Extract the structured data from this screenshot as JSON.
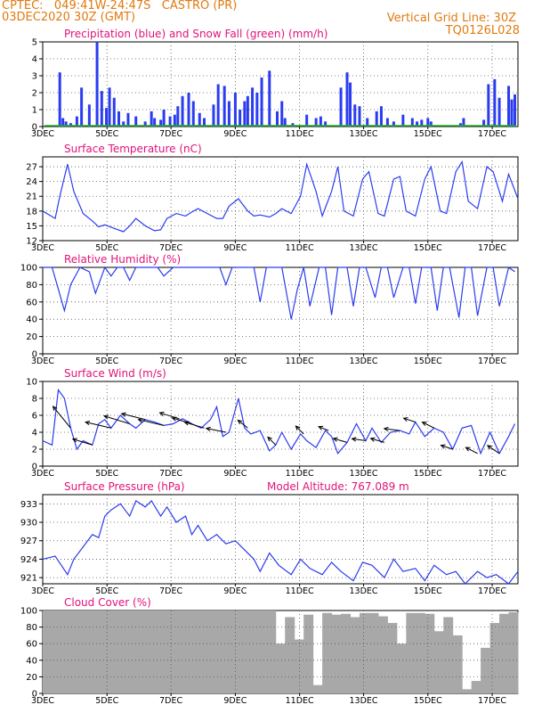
{
  "header": {
    "line1_left": "CPTEC:   049:41W-24:47S   CASTRO (PR)",
    "line2_left": "03DEC2020 30Z (GMT)",
    "line2_right": "Vertical Grid Line: 30Z",
    "line3_right": "TQ0126L028"
  },
  "colors": {
    "header": "#e07a10",
    "title": "#e0137a",
    "series": "#2b3cf0",
    "snow": "#1bb31b",
    "cloud": "#a8a8a8",
    "wind_arrow": "#000000"
  },
  "x_labels": [
    "3DEC",
    "5DEC",
    "7DEC",
    "9DEC",
    "11DEC",
    "13DEC",
    "15DEC",
    "17DEC"
  ],
  "chart_data": [
    {
      "type": "bar",
      "title": "Precipitation (blue) and Snow Fall (green) (mm/h)",
      "x_range": [
        0,
        15.3
      ],
      "ylim": [
        0,
        5
      ],
      "yticks": [
        "0",
        "1",
        "2",
        "3",
        "4",
        "5"
      ],
      "series": [
        {
          "name": "Precipitation",
          "x": [
            0.55,
            0.65,
            0.75,
            0.9,
            1.1,
            1.25,
            1.5,
            1.75,
            1.9,
            2.05,
            2.15,
            2.3,
            2.45,
            2.6,
            2.75,
            3.0,
            3.3,
            3.5,
            3.6,
            3.8,
            3.9,
            4.1,
            4.25,
            4.35,
            4.5,
            4.7,
            4.85,
            5.05,
            5.2,
            5.5,
            5.65,
            5.85,
            6.0,
            6.2,
            6.35,
            6.5,
            6.6,
            6.75,
            6.9,
            7.05,
            7.3,
            7.55,
            7.7,
            7.8,
            8.05,
            8.5,
            8.8,
            8.95,
            9.1,
            9.6,
            9.8,
            9.9,
            10.05,
            10.2,
            10.45,
            10.75,
            10.9,
            11.1,
            11.3,
            11.6,
            11.9,
            12.05,
            12.2,
            12.4,
            12.5,
            13.45,
            13.55,
            14.2,
            14.35,
            14.55,
            14.7,
            15.0,
            15.1,
            15.2
          ],
          "values": [
            3.2,
            0.5,
            0.3,
            0.2,
            0.6,
            2.3,
            1.3,
            5.0,
            2.1,
            1.1,
            2.3,
            1.7,
            0.9,
            0.3,
            0.8,
            0.6,
            0.3,
            0.9,
            0.5,
            0.4,
            1.0,
            0.6,
            0.7,
            1.2,
            1.8,
            2.0,
            1.5,
            0.8,
            0.5,
            1.3,
            2.5,
            2.4,
            1.5,
            2.0,
            1.0,
            1.5,
            1.8,
            2.3,
            2.0,
            2.9,
            3.3,
            0.9,
            1.5,
            0.5,
            0.2,
            0.7,
            0.5,
            0.6,
            0.3,
            2.3,
            3.2,
            2.6,
            1.3,
            1.2,
            0.5,
            0.9,
            1.2,
            0.5,
            0.3,
            0.7,
            0.5,
            0.3,
            0.4,
            0.5,
            0.3,
            0.2,
            0.5,
            0.4,
            2.5,
            2.8,
            1.7,
            2.4,
            1.6,
            1.9
          ]
        },
        {
          "name": "Snow Fall",
          "x": [],
          "values": []
        }
      ]
    },
    {
      "type": "line",
      "title": "Surface Temperature (nC)",
      "x_range": [
        0,
        15.3
      ],
      "ylim": [
        12,
        29
      ],
      "yticks": [
        "12",
        "15",
        "18",
        "21",
        "24",
        "27"
      ],
      "series": [
        {
          "name": "Temperature",
          "x": [
            0,
            0.4,
            0.55,
            0.8,
            1.0,
            1.3,
            1.6,
            1.8,
            2.0,
            2.3,
            2.6,
            2.8,
            3.0,
            3.3,
            3.6,
            3.8,
            4.0,
            4.3,
            4.6,
            4.8,
            5.0,
            5.3,
            5.6,
            5.8,
            6.0,
            6.3,
            6.6,
            6.8,
            7.0,
            7.3,
            7.5,
            7.7,
            8.0,
            8.3,
            8.5,
            8.8,
            9.0,
            9.3,
            9.5,
            9.7,
            10.0,
            10.3,
            10.5,
            10.8,
            11.0,
            11.3,
            11.5,
            11.7,
            12.0,
            12.3,
            12.5,
            12.8,
            13.0,
            13.3,
            13.5,
            13.7,
            14.0,
            14.3,
            14.5,
            14.8,
            15.0,
            15.3
          ],
          "values": [
            18,
            16.5,
            21,
            27.5,
            22,
            17.5,
            16,
            14.8,
            15.2,
            14.5,
            13.8,
            15,
            16.5,
            15,
            14,
            14.2,
            16.5,
            17.5,
            17,
            17.8,
            18.5,
            17.5,
            16.5,
            16.5,
            19,
            20.5,
            18,
            17,
            17.2,
            16.8,
            17.5,
            18.5,
            17.5,
            21,
            27.5,
            22,
            17,
            22,
            27,
            18,
            17,
            24.5,
            26,
            17.5,
            17,
            24.5,
            25,
            18,
            17,
            24.5,
            27,
            18,
            17.5,
            26,
            28,
            20,
            18.5,
            27,
            26,
            20,
            25.5,
            20.5
          ]
        }
      ]
    },
    {
      "type": "line",
      "title": "Relative Humidity (%)",
      "x_range": [
        0,
        15.3
      ],
      "ylim": [
        0,
        100
      ],
      "yticks": [
        "0",
        "20",
        "40",
        "60",
        "80",
        "100"
      ],
      "series": [
        {
          "name": "Relative Humidity",
          "x": [
            0,
            0.3,
            0.5,
            0.7,
            0.9,
            1.2,
            1.5,
            1.7,
            2.0,
            2.2,
            2.4,
            2.6,
            2.8,
            3.0,
            3.2,
            3.5,
            3.7,
            3.9,
            4.2,
            4.5,
            4.7,
            4.9,
            5.1,
            5.4,
            5.7,
            5.9,
            6.1,
            6.5,
            6.8,
            7.0,
            7.2,
            7.4,
            7.7,
            8.0,
            8.2,
            8.4,
            8.6,
            8.9,
            9.1,
            9.3,
            9.5,
            9.8,
            10.0,
            10.2,
            10.4,
            10.7,
            10.9,
            11.1,
            11.3,
            11.6,
            11.8,
            12.0,
            12.2,
            12.5,
            12.7,
            12.9,
            13.1,
            13.4,
            13.6,
            13.8,
            14.0,
            14.3,
            14.5,
            14.7,
            15.0,
            15.2
          ],
          "values": [
            100,
            100,
            75,
            50,
            80,
            100,
            95,
            70,
            100,
            90,
            100,
            100,
            85,
            100,
            100,
            100,
            100,
            90,
            100,
            100,
            100,
            100,
            100,
            100,
            100,
            80,
            100,
            100,
            100,
            60,
            100,
            100,
            100,
            40,
            75,
            100,
            55,
            100,
            100,
            45,
            100,
            100,
            55,
            100,
            100,
            65,
            100,
            100,
            65,
            100,
            100,
            58,
            100,
            100,
            50,
            100,
            100,
            42,
            100,
            100,
            44,
            100,
            100,
            55,
            100,
            95
          ]
        }
      ]
    },
    {
      "type": "line",
      "title": "Surface Wind (m/s)",
      "x_range": [
        0,
        15.3
      ],
      "ylim": [
        0,
        10
      ],
      "yticks": [
        "0",
        "2",
        "4",
        "6",
        "8",
        "10"
      ],
      "series": [
        {
          "name": "Wind speed",
          "x": [
            0,
            0.3,
            0.5,
            0.7,
            0.9,
            1.1,
            1.3,
            1.6,
            1.8,
            2.0,
            2.2,
            2.5,
            2.8,
            3.0,
            3.3,
            3.6,
            3.9,
            4.2,
            4.5,
            4.8,
            5.1,
            5.4,
            5.6,
            5.8,
            6.0,
            6.3,
            6.5,
            6.7,
            7.0,
            7.3,
            7.5,
            7.7,
            8.0,
            8.3,
            8.5,
            8.8,
            9.1,
            9.3,
            9.5,
            9.8,
            10.1,
            10.4,
            10.6,
            10.9,
            11.2,
            11.5,
            11.8,
            12.0,
            12.3,
            12.6,
            12.9,
            13.2,
            13.5,
            13.8,
            14.1,
            14.4,
            14.7,
            15.0,
            15.2
          ],
          "values": [
            3,
            2.5,
            9,
            8,
            4.5,
            2,
            3,
            2.5,
            5,
            5.5,
            4.5,
            6,
            5,
            4.5,
            5.5,
            5.2,
            4.8,
            5,
            5.6,
            5,
            4.5,
            5.5,
            7,
            3.5,
            4,
            8,
            4.5,
            3.8,
            4.2,
            1.8,
            2.5,
            4,
            2,
            3.8,
            3,
            2.2,
            4.2,
            3.5,
            1.5,
            2.8,
            5,
            3,
            4.5,
            2.8,
            4,
            4.2,
            3.8,
            5.2,
            3.5,
            4.5,
            4,
            2,
            4.5,
            4.8,
            1.5,
            4,
            1.5,
            3.5,
            5
          ]
        },
        {
          "name": "Wind direction",
          "arrows": [
            {
              "x": 0.9,
              "u": -0.9,
              "v": 1.1
            },
            {
              "x": 1.6,
              "u": -1.0,
              "v": 0.3
            },
            {
              "x": 2.2,
              "u": -1.3,
              "v": 0.3
            },
            {
              "x": 2.8,
              "u": -1.3,
              "v": 0.4
            },
            {
              "x": 3.3,
              "u": -1.2,
              "v": 0.3
            },
            {
              "x": 3.9,
              "u": -1.3,
              "v": 0.3
            },
            {
              "x": 4.4,
              "u": -1.0,
              "v": 0.3
            },
            {
              "x": 4.8,
              "u": -1.0,
              "v": 0.3
            },
            {
              "x": 5.2,
              "u": -1.0,
              "v": 0.3
            },
            {
              "x": 5.9,
              "u": -1.0,
              "v": 0.2
            },
            {
              "x": 6.6,
              "u": -0.5,
              "v": 0.4
            },
            {
              "x": 7.5,
              "u": -0.4,
              "v": 0.4
            },
            {
              "x": 8.4,
              "u": -0.4,
              "v": 0.4
            },
            {
              "x": 9.2,
              "u": -0.5,
              "v": 0.2
            },
            {
              "x": 9.8,
              "u": -0.7,
              "v": 0.2
            },
            {
              "x": 10.4,
              "u": -0.7,
              "v": 0.1
            },
            {
              "x": 11.0,
              "u": -0.7,
              "v": 0.2
            },
            {
              "x": 11.5,
              "u": -0.8,
              "v": 0.1
            },
            {
              "x": 12.0,
              "u": -0.6,
              "v": 0.2
            },
            {
              "x": 12.6,
              "u": -0.6,
              "v": 0.3
            },
            {
              "x": 13.2,
              "u": -0.6,
              "v": 0.2
            },
            {
              "x": 14.0,
              "u": -0.6,
              "v": 0.3
            },
            {
              "x": 14.7,
              "u": -0.6,
              "v": 0.4
            }
          ]
        }
      ]
    },
    {
      "type": "line",
      "title": "Surface Pressure (hPa)",
      "annotation": "Model Altitude: 767.089 m",
      "x_range": [
        0,
        15.3
      ],
      "ylim": [
        920,
        934.5
      ],
      "yticks": [
        "921",
        "924",
        "927",
        "930",
        "933"
      ],
      "series": [
        {
          "name": "Pressure",
          "x": [
            0,
            0.4,
            0.8,
            1.0,
            1.3,
            1.6,
            1.8,
            2.0,
            2.2,
            2.5,
            2.8,
            3.0,
            3.3,
            3.5,
            3.8,
            4.0,
            4.3,
            4.6,
            4.8,
            5.0,
            5.3,
            5.6,
            5.9,
            6.2,
            6.5,
            6.8,
            7.0,
            7.3,
            7.6,
            8.0,
            8.3,
            8.6,
            9.0,
            9.3,
            9.6,
            10.0,
            10.3,
            10.6,
            11.0,
            11.3,
            11.6,
            12.0,
            12.3,
            12.6,
            13.0,
            13.3,
            13.6,
            14.0,
            14.3,
            14.6,
            15.0,
            15.3
          ],
          "values": [
            924,
            924.5,
            921.5,
            924,
            926,
            928,
            927.5,
            931,
            932,
            933,
            931,
            933.5,
            932.5,
            933.5,
            931,
            932.5,
            930,
            931,
            928,
            929.5,
            927,
            928,
            926.5,
            927,
            925.5,
            924,
            922,
            925,
            923,
            921.5,
            924,
            922.5,
            921.5,
            923.5,
            922,
            920.5,
            923.5,
            923,
            921,
            924,
            922,
            922.5,
            920.5,
            923,
            921.5,
            922,
            920,
            922,
            921,
            921.5,
            920,
            922
          ]
        }
      ]
    },
    {
      "type": "bar",
      "title": "Cloud Cover (%)",
      "x_range": [
        0,
        15.3
      ],
      "ylim": [
        0,
        100
      ],
      "yticks": [
        "0",
        "20",
        "40",
        "60",
        "80",
        "100"
      ],
      "series": [
        {
          "name": "Cloud Cover",
          "x": [
            0,
            0.3,
            0.6,
            0.9,
            1.2,
            1.5,
            1.8,
            2.1,
            2.4,
            2.7,
            3.0,
            3.3,
            3.6,
            3.9,
            4.2,
            4.5,
            4.8,
            5.1,
            5.4,
            5.7,
            6.0,
            6.3,
            6.6,
            6.9,
            7.2,
            7.5,
            7.8,
            8.1,
            8.4,
            8.7,
            9.0,
            9.3,
            9.6,
            9.9,
            10.2,
            10.5,
            10.8,
            11.1,
            11.4,
            11.7,
            12.0,
            12.3,
            12.6,
            12.9,
            13.2,
            13.5,
            13.8,
            14.1,
            14.4,
            14.7,
            15.0
          ],
          "values": [
            100,
            100,
            100,
            100,
            100,
            100,
            100,
            100,
            100,
            100,
            100,
            100,
            100,
            100,
            100,
            100,
            100,
            100,
            100,
            100,
            100,
            100,
            100,
            100,
            100,
            60,
            92,
            65,
            95,
            10,
            97,
            95,
            96,
            92,
            97,
            97,
            93,
            85,
            60,
            97,
            97,
            96,
            75,
            92,
            70,
            5,
            15,
            55,
            85,
            96,
            98
          ]
        }
      ]
    }
  ]
}
